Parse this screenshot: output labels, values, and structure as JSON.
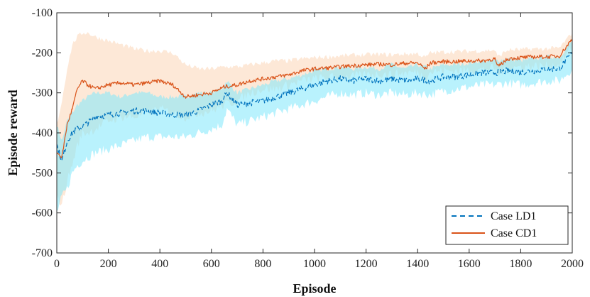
{
  "chart_data": {
    "type": "line",
    "title": "",
    "xlabel": "Episode",
    "ylabel": "Episode reward",
    "xlim": [
      0,
      2000
    ],
    "ylim": [
      -700,
      -100
    ],
    "xticks": [
      0,
      200,
      400,
      600,
      800,
      1000,
      1200,
      1400,
      1600,
      1800,
      2000
    ],
    "yticks": [
      -100,
      -200,
      -300,
      -400,
      -500,
      -600,
      -700
    ],
    "grid": false,
    "legend_position": "bottom-right",
    "series": [
      {
        "name": "Case LD1",
        "color": "#0072BD",
        "band_color": "#7fe8fb",
        "line_style": "dashed",
        "x": [
          0,
          20,
          40,
          60,
          80,
          100,
          120,
          150,
          200,
          250,
          300,
          350,
          400,
          450,
          500,
          550,
          600,
          640,
          660,
          700,
          750,
          800,
          850,
          900,
          950,
          1000,
          1050,
          1100,
          1150,
          1200,
          1250,
          1300,
          1350,
          1400,
          1450,
          1500,
          1550,
          1600,
          1650,
          1700,
          1750,
          1800,
          1850,
          1900,
          1950,
          2000
        ],
        "values": [
          -430,
          -470,
          -420,
          -400,
          -390,
          -385,
          -375,
          -360,
          -355,
          -350,
          -345,
          -345,
          -350,
          -355,
          -355,
          -345,
          -330,
          -320,
          -300,
          -330,
          -325,
          -320,
          -310,
          -300,
          -290,
          -280,
          -270,
          -265,
          -270,
          -265,
          -270,
          -265,
          -270,
          -265,
          -270,
          -260,
          -260,
          -255,
          -250,
          -250,
          -245,
          -248,
          -245,
          -240,
          -240,
          -200
        ],
        "band_upper": [
          -380,
          -420,
          -370,
          -350,
          -330,
          -320,
          -310,
          -300,
          -300,
          -310,
          -300,
          -300,
          -310,
          -310,
          -310,
          -300,
          -300,
          -290,
          -270,
          -300,
          -290,
          -280,
          -270,
          -265,
          -255,
          -245,
          -240,
          -235,
          -240,
          -235,
          -240,
          -230,
          -240,
          -230,
          -240,
          -230,
          -230,
          -225,
          -220,
          -220,
          -215,
          -220,
          -215,
          -210,
          -210,
          -170
        ],
        "band_lower": [
          -600,
          -560,
          -540,
          -500,
          -480,
          -470,
          -460,
          -450,
          -440,
          -430,
          -420,
          -410,
          -410,
          -410,
          -410,
          -400,
          -390,
          -380,
          -340,
          -380,
          -370,
          -360,
          -350,
          -340,
          -330,
          -320,
          -310,
          -300,
          -305,
          -300,
          -305,
          -300,
          -305,
          -300,
          -305,
          -295,
          -290,
          -285,
          -280,
          -280,
          -275,
          -280,
          -275,
          -270,
          -270,
          -240
        ]
      },
      {
        "name": "Case CD1",
        "color": "#D95319",
        "band_color": "#fbd9bd",
        "line_style": "solid",
        "x": [
          0,
          20,
          40,
          60,
          80,
          100,
          120,
          150,
          200,
          250,
          300,
          350,
          400,
          450,
          500,
          550,
          600,
          650,
          700,
          750,
          800,
          850,
          900,
          950,
          1000,
          1050,
          1100,
          1150,
          1200,
          1250,
          1300,
          1350,
          1400,
          1430,
          1450,
          1500,
          1550,
          1600,
          1650,
          1700,
          1710,
          1750,
          1800,
          1850,
          1900,
          1950,
          2000
        ],
        "values": [
          -450,
          -460,
          -380,
          -340,
          -290,
          -270,
          -280,
          -290,
          -280,
          -275,
          -280,
          -275,
          -270,
          -280,
          -310,
          -305,
          -300,
          -285,
          -280,
          -270,
          -265,
          -260,
          -255,
          -245,
          -240,
          -238,
          -235,
          -232,
          -230,
          -228,
          -230,
          -226,
          -225,
          -240,
          -225,
          -222,
          -222,
          -220,
          -220,
          -215,
          -235,
          -215,
          -212,
          -210,
          -210,
          -208,
          -165
        ],
        "band_upper": [
          -380,
          -320,
          -240,
          -180,
          -160,
          -150,
          -150,
          -160,
          -170,
          -180,
          -190,
          -195,
          -195,
          -200,
          -230,
          -240,
          -240,
          -235,
          -235,
          -230,
          -225,
          -220,
          -220,
          -215,
          -212,
          -210,
          -208,
          -206,
          -205,
          -204,
          -205,
          -203,
          -202,
          -212,
          -200,
          -198,
          -197,
          -196,
          -195,
          -193,
          -210,
          -193,
          -192,
          -190,
          -190,
          -188,
          -150
        ],
        "band_lower": [
          -560,
          -580,
          -520,
          -480,
          -430,
          -400,
          -400,
          -390,
          -370,
          -360,
          -360,
          -350,
          -340,
          -350,
          -360,
          -350,
          -345,
          -330,
          -320,
          -300,
          -290,
          -290,
          -280,
          -270,
          -265,
          -262,
          -260,
          -258,
          -255,
          -252,
          -254,
          -250,
          -248,
          -262,
          -248,
          -245,
          -245,
          -243,
          -242,
          -238,
          -255,
          -238,
          -235,
          -233,
          -232,
          -230,
          -185
        ]
      }
    ]
  }
}
